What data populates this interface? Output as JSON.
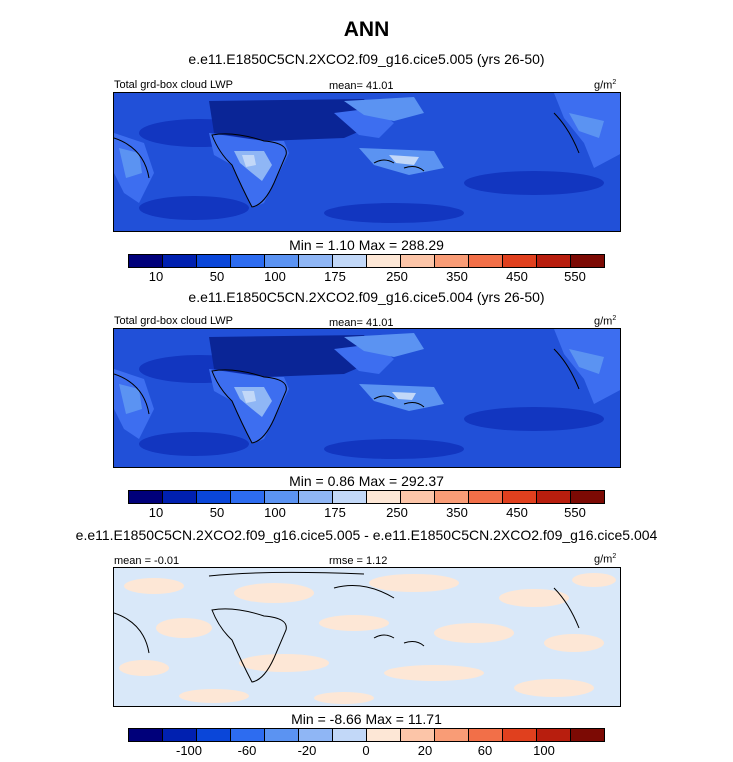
{
  "figure": {
    "title": "ANN"
  },
  "panels": [
    {
      "case_title": "e.e11.E1850C5CN.2XCO2.f09_g16.cice5.005 (yrs 26-50)",
      "left_label": "Total grd-box cloud LWP",
      "center_label": "mean=  41.01",
      "units": "g/m",
      "units_sup": "2",
      "minmax": "Min =   1.10 Max = 288.29"
    },
    {
      "case_title": "e.e11.E1850C5CN.2XCO2.f09_g16.cice5.004 (yrs 26-50)",
      "left_label": "Total grd-box cloud LWP",
      "center_label": "mean=  41.01",
      "units": "g/m",
      "units_sup": "2",
      "minmax": "Min =   0.86 Max = 292.37"
    },
    {
      "case_title": "e.e11.E1850C5CN.2XCO2.f09_g16.cice5.005 - e.e11.E1850C5CN.2XCO2.f09_g16.cice5.004",
      "left_label": "mean =  -0.01",
      "center_label": "rmse =   1.12",
      "units": "g/m",
      "units_sup": "2",
      "minmax": "Min =  -8.66 Max =  11.71"
    }
  ],
  "colorbar_colors": [
    "#00007a",
    "#0020b0",
    "#0a46d9",
    "#2d6cf0",
    "#5b93f2",
    "#8fb6f5",
    "#c2d8f8",
    "#fde7d6",
    "#fcc5a8",
    "#f99c76",
    "#f26f48",
    "#e0401e",
    "#b81e0e",
    "#7c0a04"
  ],
  "chart_data": [
    {
      "type": "heatmap",
      "title": "e.e11.E1850C5CN.2XCO2.f09_g16.cice5.005 (yrs 26-50)",
      "variable": "Total grd-box cloud LWP",
      "units": "g/m2",
      "mean": 41.01,
      "min": 1.1,
      "max": 288.29,
      "contour_levels": [
        10,
        25,
        50,
        75,
        100,
        125,
        150,
        175,
        200,
        250,
        300,
        350,
        400,
        450,
        550
      ],
      "colorbar_tick_labels": [
        "10",
        "50",
        "100",
        "175",
        "250",
        "350",
        "450",
        "550"
      ]
    },
    {
      "type": "heatmap",
      "title": "e.e11.E1850C5CN.2XCO2.f09_g16.cice5.004 (yrs 26-50)",
      "variable": "Total grd-box cloud LWP",
      "units": "g/m2",
      "mean": 41.01,
      "min": 0.86,
      "max": 292.37,
      "contour_levels": [
        10,
        25,
        50,
        75,
        100,
        125,
        150,
        175,
        200,
        250,
        300,
        350,
        400,
        450,
        550
      ],
      "colorbar_tick_labels": [
        "10",
        "50",
        "100",
        "175",
        "250",
        "350",
        "450",
        "550"
      ]
    },
    {
      "type": "heatmap",
      "title": "e.e11.E1850C5CN.2XCO2.f09_g16.cice5.005 - e.e11.E1850C5CN.2XCO2.f09_g16.cice5.004",
      "variable": "difference",
      "units": "g/m2",
      "mean": -0.01,
      "rmse": 1.12,
      "min": -8.66,
      "max": 11.71,
      "contour_levels": [
        -120,
        -100,
        -80,
        -60,
        -40,
        -20,
        -10,
        0,
        10,
        20,
        40,
        60,
        80,
        100,
        120
      ],
      "colorbar_tick_labels": [
        "-100",
        "-60",
        "-20",
        "0",
        "20",
        "60",
        "100"
      ]
    }
  ]
}
